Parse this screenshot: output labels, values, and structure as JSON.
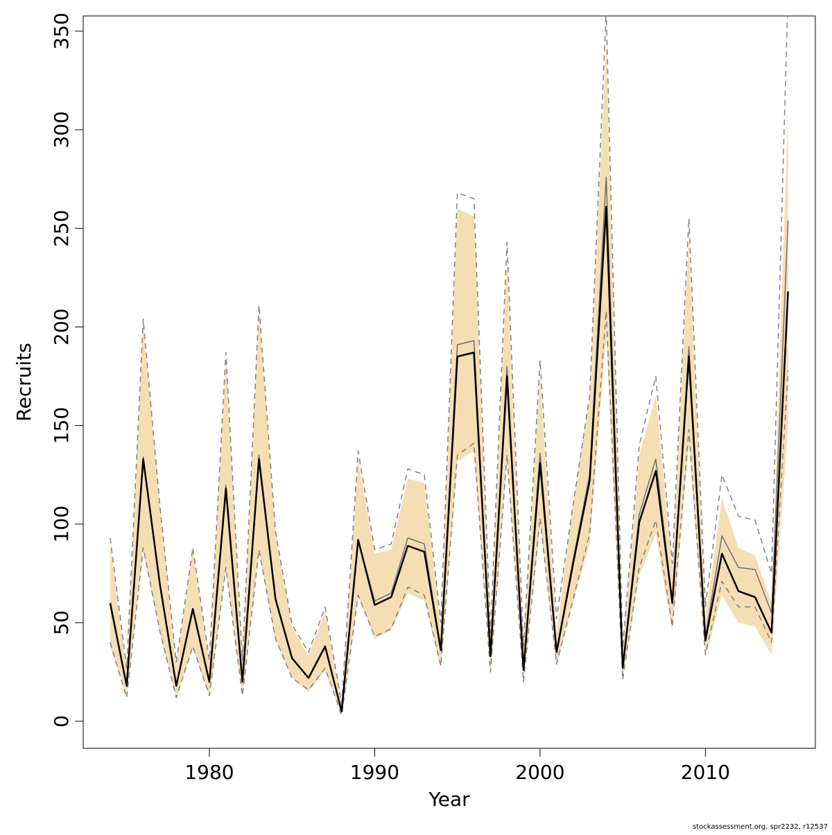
{
  "chart_data": {
    "type": "line",
    "x_label": "Year",
    "y_label": "Recruits",
    "note": "stockassessment.org, spr2232, r12537",
    "x": [
      1974,
      1975,
      1976,
      1977,
      1978,
      1979,
      1980,
      1981,
      1982,
      1983,
      1984,
      1985,
      1986,
      1987,
      1988,
      1989,
      1990,
      1991,
      1992,
      1993,
      1994,
      1995,
      1996,
      1997,
      1998,
      1999,
      2000,
      2001,
      2002,
      2003,
      2004,
      2005,
      2006,
      2007,
      2008,
      2009,
      2010,
      2011,
      2012,
      2013,
      2014,
      2015
    ],
    "xlim": [
      1972.37,
      2016.65
    ],
    "xticks": [
      1980,
      1990,
      2000,
      2010
    ],
    "ylim": [
      -13.7,
      357.7
    ],
    "yticks": [
      0,
      50,
      100,
      150,
      200,
      250,
      300,
      350
    ],
    "band": {
      "color": "#f5deb3",
      "lower": [
        38,
        13,
        87,
        45,
        12,
        37,
        13,
        77,
        13,
        86,
        41,
        22,
        15,
        26,
        3,
        63,
        42,
        46,
        65,
        61,
        27,
        132,
        137,
        24,
        133,
        20,
        100,
        28,
        60,
        90,
        195,
        21,
        74,
        95,
        46,
        140,
        32,
        64,
        50,
        48,
        34,
        150
      ],
      "upper": [
        90,
        25,
        202,
        110,
        28,
        87,
        30,
        183,
        30,
        208,
        95,
        48,
        33,
        56,
        8,
        133,
        85,
        87,
        123,
        121,
        48,
        260,
        256,
        45,
        233,
        37,
        176,
        45,
        110,
        165,
        345,
        36,
        135,
        165,
        78,
        245,
        53,
        113,
        88,
        84,
        60,
        312
      ]
    },
    "series": [
      {
        "color": "#808080",
        "dashed": true,
        "width": 1.5,
        "values": [
          93,
          27,
          204,
          110,
          30,
          88,
          31,
          187,
          31,
          211,
          96,
          49,
          35,
          58,
          9,
          137,
          87,
          90,
          128,
          125,
          50,
          268,
          265,
          45,
          243,
          38,
          183,
          52,
          110,
          165,
          360,
          37,
          140,
          175,
          80,
          255,
          58,
          125,
          104,
          102,
          75,
          370
        ]
      },
      {
        "color": "#808080",
        "dashed": true,
        "width": 1.5,
        "values": [
          40,
          12,
          88,
          46,
          12,
          38,
          13,
          78,
          13,
          87,
          42,
          22,
          16,
          27,
          3,
          64,
          43,
          47,
          68,
          64,
          28,
          135,
          141,
          25,
          135,
          20,
          103,
          29,
          62,
          95,
          208,
          21,
          78,
          102,
          48,
          148,
          34,
          71,
          58,
          58,
          40,
          178
        ]
      },
      {
        "color": "#707070",
        "dashed": false,
        "width": 1.5,
        "values": [
          60,
          18,
          134,
          70,
          18,
          57,
          20,
          120,
          20,
          135,
          62,
          32,
          22,
          38,
          5,
          92,
          61,
          65,
          93,
          90,
          37,
          191,
          193,
          34,
          180,
          27,
          136,
          36,
          82,
          125,
          276,
          28,
          105,
          133,
          61,
          190,
          43,
          94,
          78,
          77,
          55,
          254
        ]
      },
      {
        "color": "#000000",
        "dashed": false,
        "width": 2.5,
        "values": [
          60,
          18,
          133,
          70,
          18,
          57,
          20,
          118,
          20,
          133,
          62,
          32,
          22,
          38,
          5,
          92,
          59,
          63,
          89,
          86,
          36,
          185,
          187,
          33,
          175,
          26,
          131,
          35,
          80,
          122,
          261,
          27,
          101,
          127,
          60,
          185,
          41,
          85,
          66,
          63,
          45,
          218
        ]
      }
    ]
  }
}
